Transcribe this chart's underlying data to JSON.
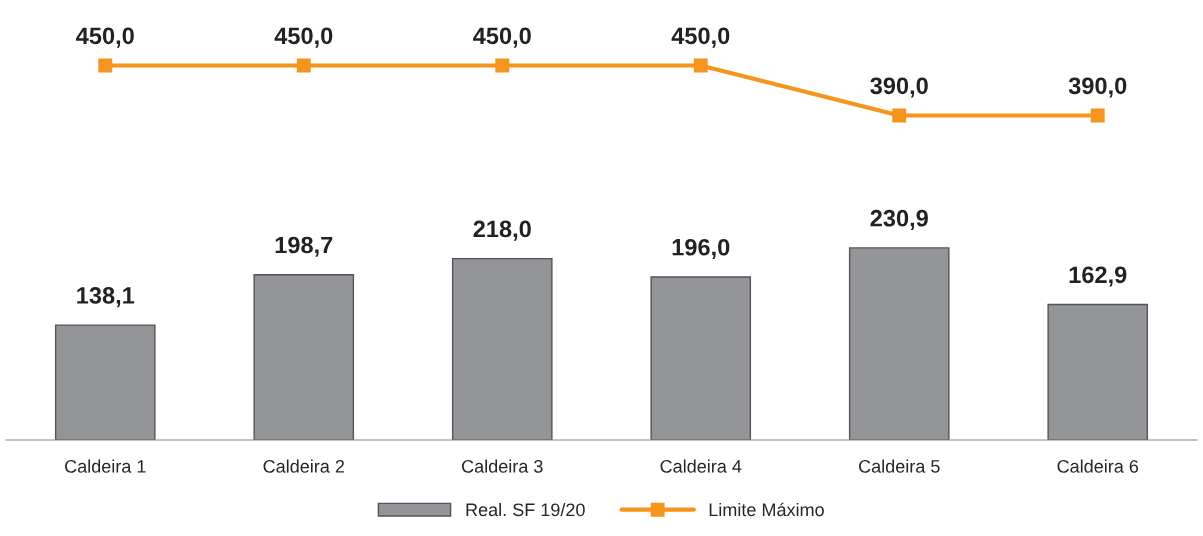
{
  "chart_data": {
    "type": "bar",
    "categories": [
      "Caldeira 1",
      "Caldeira 2",
      "Caldeira 3",
      "Caldeira 4",
      "Caldeira 5",
      "Caldeira 6"
    ],
    "series": [
      {
        "name": "Real. SF 19/20",
        "color": "#939598",
        "values": [
          138.1,
          198.7,
          218.0,
          196.0,
          230.9,
          162.9
        ],
        "value_labels": [
          "138,1",
          "198,7",
          "218,0",
          "196,0",
          "230,9",
          "162,9"
        ]
      },
      {
        "name": "Limite Máximo",
        "type": "line",
        "color": "#f7941d",
        "marker": "square",
        "values": [
          450.0,
          450.0,
          450.0,
          450.0,
          390.0,
          390.0
        ],
        "value_labels": [
          "450,0",
          "450,0",
          "450,0",
          "450,0",
          "390,0",
          "390,0"
        ]
      }
    ],
    "legend": "bottom",
    "grid": false
  }
}
